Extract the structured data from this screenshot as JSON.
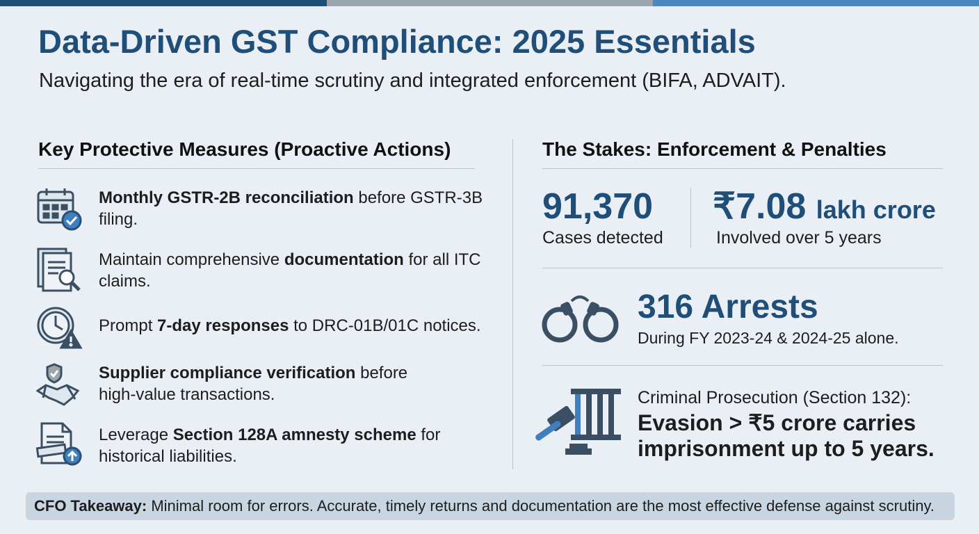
{
  "header": {
    "title": "Data-Driven GST Compliance: 2025 Essentials",
    "subtitle": "Navigating the era of real-time scrutiny and integrated enforcement (BIFA, ADVAIT)."
  },
  "measures": {
    "heading": "Key Protective Measures (Proactive Actions)",
    "items": [
      {
        "parts": [
          {
            "text": "Monthly GSTR-2B reconciliation",
            "bold": true
          },
          {
            "text": " before GSTR-3B filing.",
            "bold": false
          }
        ]
      },
      {
        "parts": [
          {
            "text": "Maintain comprehensive ",
            "bold": false
          },
          {
            "text": "documentation",
            "bold": true
          },
          {
            "text": " for all ITC claims.",
            "bold": false
          }
        ]
      },
      {
        "parts": [
          {
            "text": "Prompt ",
            "bold": false
          },
          {
            "text": "7-day responses",
            "bold": true
          },
          {
            "text": " to DRC-01B/01C notices.",
            "bold": false
          }
        ]
      },
      {
        "parts": [
          {
            "text": "Supplier compliance verification",
            "bold": true
          },
          {
            "text": " before high-value transactions.",
            "bold": false
          }
        ]
      },
      {
        "parts": [
          {
            "text": "Leverage ",
            "bold": false
          },
          {
            "text": "Section 128A amnesty scheme",
            "bold": true
          },
          {
            "text": " for historical liabilities.",
            "bold": false
          }
        ]
      }
    ]
  },
  "stakes": {
    "heading": "The Stakes: Enforcement & Penalties",
    "cases": {
      "value": "91,370",
      "label": "Cases detected"
    },
    "amount": {
      "value": "₹7.08",
      "unit": "lakh crore",
      "label": "Involved over 5 years"
    },
    "arrests": {
      "value": "316 Arrests",
      "label": "During FY 2023-24 & 2024-25 alone."
    },
    "prosecution": {
      "intro": "Criminal Prosecution (Section 132):",
      "statement": "Evasion > ₹5 crore carries imprisonment up to 5 years."
    }
  },
  "takeaway": {
    "label": "CFO Takeaway:",
    "text": " Minimal room for errors. Accurate, timely returns and documentation are the most effective defense against scrutiny."
  }
}
